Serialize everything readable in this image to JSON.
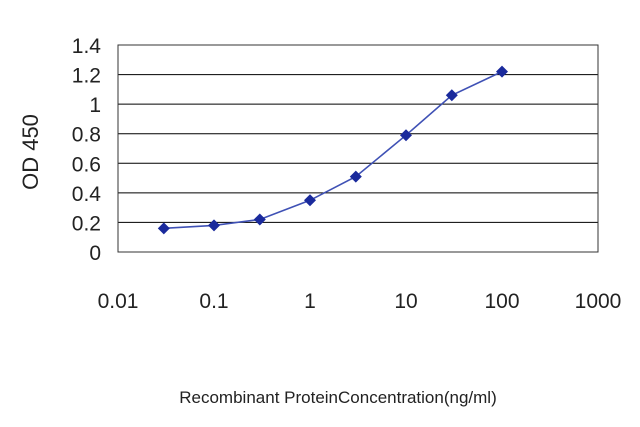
{
  "chart_data": {
    "type": "line",
    "title": "",
    "xlabel": "Recombinant ProteinConcentration(ng/ml)",
    "ylabel": "OD 450",
    "x_scale": "log",
    "xlim": [
      0.01,
      1000
    ],
    "ylim": [
      0,
      1.4
    ],
    "x_ticks": [
      "0.01",
      "0.1",
      "1",
      "10",
      "100",
      "1000"
    ],
    "y_ticks": [
      "0",
      "0.2",
      "0.4",
      "0.6",
      "0.8",
      "1",
      "1.2",
      "1.4"
    ],
    "grid": "horizontal",
    "series": [
      {
        "x": [
          0.03,
          0.1,
          0.3,
          1,
          3,
          10,
          30,
          100
        ],
        "y": [
          0.16,
          0.18,
          0.22,
          0.35,
          0.51,
          0.79,
          1.06,
          1.22
        ]
      }
    ],
    "colors": {
      "line": "#3f51b5",
      "marker": "#1a2a9c",
      "grid": "#000000"
    }
  }
}
